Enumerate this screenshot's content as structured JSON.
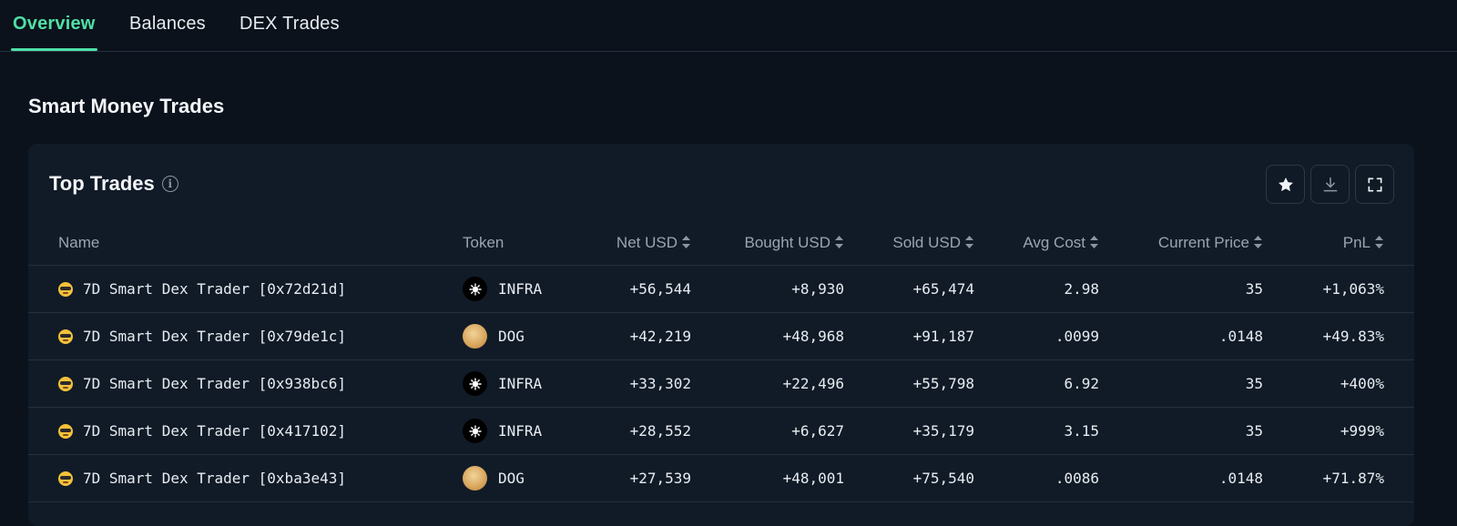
{
  "tabs": [
    {
      "label": "Overview",
      "active": true
    },
    {
      "label": "Balances",
      "active": false
    },
    {
      "label": "DEX Trades",
      "active": false
    }
  ],
  "section_title": "Smart Money Trades",
  "card": {
    "title": "Top Trades",
    "actions": [
      "star-icon",
      "download-icon",
      "fullscreen-icon"
    ]
  },
  "table": {
    "columns": [
      "Name",
      "Token",
      "Net USD",
      "Bought USD",
      "Sold USD",
      "Avg Cost",
      "Current Price",
      "PnL"
    ],
    "rows": [
      {
        "name": "7D Smart Dex Trader [0x72d21d]",
        "token": "INFRA",
        "token_icon": "infra",
        "net_usd": "+56,544",
        "bought_usd": "+8,930",
        "sold_usd": "+65,474",
        "avg_cost": "2.98",
        "current_price": "35",
        "pnl": "+1,063%"
      },
      {
        "name": "7D Smart Dex Trader [0x79de1c]",
        "token": "DOG",
        "token_icon": "dog",
        "net_usd": "+42,219",
        "bought_usd": "+48,968",
        "sold_usd": "+91,187",
        "avg_cost": ".0099",
        "current_price": ".0148",
        "pnl": "+49.83%"
      },
      {
        "name": "7D Smart Dex Trader [0x938bc6]",
        "token": "INFRA",
        "token_icon": "infra",
        "net_usd": "+33,302",
        "bought_usd": "+22,496",
        "sold_usd": "+55,798",
        "avg_cost": "6.92",
        "current_price": "35",
        "pnl": "+400%"
      },
      {
        "name": "7D Smart Dex Trader [0x417102]",
        "token": "INFRA",
        "token_icon": "infra",
        "net_usd": "+28,552",
        "bought_usd": "+6,627",
        "sold_usd": "+35,179",
        "avg_cost": "3.15",
        "current_price": "35",
        "pnl": "+999%"
      },
      {
        "name": "7D Smart Dex Trader [0xba3e43]",
        "token": "DOG",
        "token_icon": "dog",
        "net_usd": "+27,539",
        "bought_usd": "+48,001",
        "sold_usd": "+75,540",
        "avg_cost": ".0086",
        "current_price": ".0148",
        "pnl": "+71.87%"
      }
    ]
  },
  "colors": {
    "accent": "#4fe0a6",
    "positive": "#4cc77f",
    "negative": "#ef6b6b",
    "background": "#0b121b",
    "card": "#111b27"
  }
}
